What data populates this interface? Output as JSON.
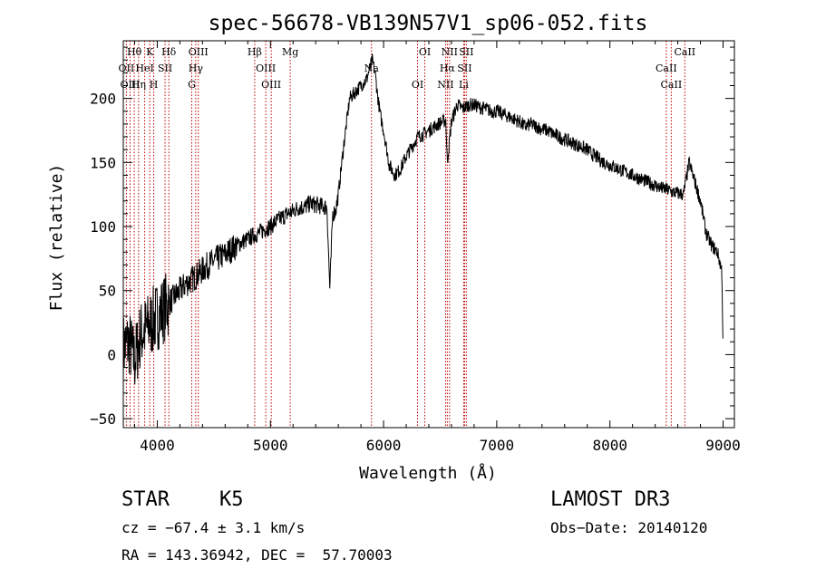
{
  "chart_data": {
    "type": "line",
    "title": "spec-56678-VB139N57V1_sp06-052.fits",
    "xlabel": "Wavelength (Å)",
    "ylabel": "Flux (relative)",
    "xlim": [
      3700,
      9100
    ],
    "ylim": [
      -57,
      245
    ],
    "x_ticks": [
      4000,
      5000,
      6000,
      7000,
      8000,
      9000
    ],
    "y_ticks": [
      -50,
      0,
      50,
      100,
      150,
      200
    ],
    "grid": false,
    "series": [
      {
        "name": "flux",
        "x": [
          3700,
          3750,
          3800,
          3850,
          3900,
          3950,
          4000,
          4050,
          4100,
          4150,
          4200,
          4250,
          4300,
          4350,
          4400,
          4450,
          4500,
          4550,
          4600,
          4650,
          4700,
          4750,
          4800,
          4850,
          4900,
          4950,
          5000,
          5050,
          5100,
          5150,
          5200,
          5250,
          5300,
          5350,
          5400,
          5450,
          5500,
          5525,
          5550,
          5575,
          5600,
          5650,
          5700,
          5750,
          5800,
          5850,
          5900,
          5925,
          5950,
          5975,
          6000,
          6050,
          6100,
          6150,
          6200,
          6250,
          6300,
          6350,
          6400,
          6450,
          6500,
          6550,
          6563,
          6600,
          6650,
          6700,
          6750,
          6800,
          6850,
          6900,
          6950,
          7000,
          7050,
          7100,
          7150,
          7200,
          7250,
          7300,
          7350,
          7400,
          7450,
          7500,
          7550,
          7600,
          7650,
          7700,
          7750,
          7800,
          7850,
          7900,
          7950,
          8000,
          8050,
          8100,
          8150,
          8200,
          8250,
          8300,
          8350,
          8400,
          8450,
          8500,
          8550,
          8600,
          8650,
          8700,
          8750,
          8800,
          8850,
          8900,
          8950,
          8990,
          9000
        ],
        "y": [
          5,
          10,
          -5,
          15,
          20,
          25,
          30,
          35,
          40,
          45,
          50,
          55,
          58,
          62,
          66,
          70,
          73,
          76,
          78,
          82,
          85,
          88,
          90,
          93,
          95,
          98,
          100,
          104,
          107,
          110,
          112,
          115,
          115,
          118,
          117,
          116,
          115,
          50,
          110,
          112,
          125,
          165,
          200,
          205,
          210,
          215,
          230,
          220,
          200,
          185,
          175,
          148,
          140,
          145,
          155,
          162,
          170,
          172,
          175,
          178,
          181,
          183,
          150,
          182,
          195,
          192,
          195,
          195,
          193,
          192,
          190,
          190,
          188,
          186,
          184,
          182,
          178,
          180,
          178,
          176,
          175,
          172,
          170,
          168,
          166,
          164,
          162,
          160,
          156,
          153,
          150,
          148,
          146,
          144,
          142,
          140,
          138,
          136,
          134,
          132,
          130,
          129,
          127,
          126,
          125,
          150,
          135,
          120,
          95,
          85,
          80,
          65,
          0
        ]
      }
    ],
    "lines": [
      {
        "label": "Hθ",
        "x": 3797
      },
      {
        "label": "OII",
        "x": 3727
      },
      {
        "label": "OIII",
        "x": 3760
      },
      {
        "label": "K",
        "x": 3934
      },
      {
        "label": "HeI",
        "x": 3889
      },
      {
        "label": "Hη",
        "x": 3835
      },
      {
        "label": "Hδ",
        "x": 4102
      },
      {
        "label": "SII",
        "x": 4069
      },
      {
        "label": "H",
        "x": 3969
      },
      {
        "label": "OIII",
        "x": 4363
      },
      {
        "label": "Hγ",
        "x": 4340
      },
      {
        "label": "G",
        "x": 4305
      },
      {
        "label": "Hβ",
        "x": 4861
      },
      {
        "label": "OIII",
        "x": 4959
      },
      {
        "label": "OIII",
        "x": 5007
      },
      {
        "label": "Mg",
        "x": 5175
      },
      {
        "label": "Na",
        "x": 5893
      },
      {
        "label": "OI",
        "x": 6300
      },
      {
        "label": "OI",
        "x": 6364
      },
      {
        "label": "Hα",
        "x": 6563
      },
      {
        "label": "NII",
        "x": 6548
      },
      {
        "label": "NII",
        "x": 6583
      },
      {
        "label": "SII",
        "x": 6716
      },
      {
        "label": "Li",
        "x": 6708
      },
      {
        "label": "SII",
        "x": 6731
      },
      {
        "label": "CaII",
        "x": 8498
      },
      {
        "label": "CaII",
        "x": 8542
      },
      {
        "label": "CaII",
        "x": 8662
      }
    ]
  },
  "info": {
    "object_class": "STAR",
    "subclass": "K5",
    "survey": "LAMOST DR3",
    "redshift": "cz = −67.4 ± 3.1 km/s",
    "obs_date": "Obs−Date: 20140120",
    "coords": "RA = 143.36942, DEC =  57.70003"
  }
}
